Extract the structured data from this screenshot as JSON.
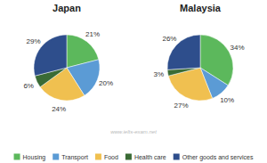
{
  "chart_data": {
    "type": "pie",
    "categories": [
      "Housing",
      "Transport",
      "Food",
      "Health care",
      "Other goods and services"
    ],
    "colors": [
      "#5cb85c",
      "#5b9bd5",
      "#f0c050",
      "#3a6b35",
      "#2e4e8c"
    ],
    "series": [
      {
        "name": "Japan",
        "values": [
          21,
          20,
          24,
          6,
          29
        ],
        "value_labels": [
          "21%",
          "20%",
          "24%",
          "6%",
          "29%"
        ]
      },
      {
        "name": "Malaysia",
        "values": [
          34,
          10,
          27,
          3,
          26
        ],
        "value_labels": [
          "34%",
          "10%",
          "27%",
          "3%",
          "26%"
        ]
      }
    ],
    "data_labels": true,
    "legend": "bottom",
    "annotations": [
      "www.ielts-exam.net"
    ]
  }
}
